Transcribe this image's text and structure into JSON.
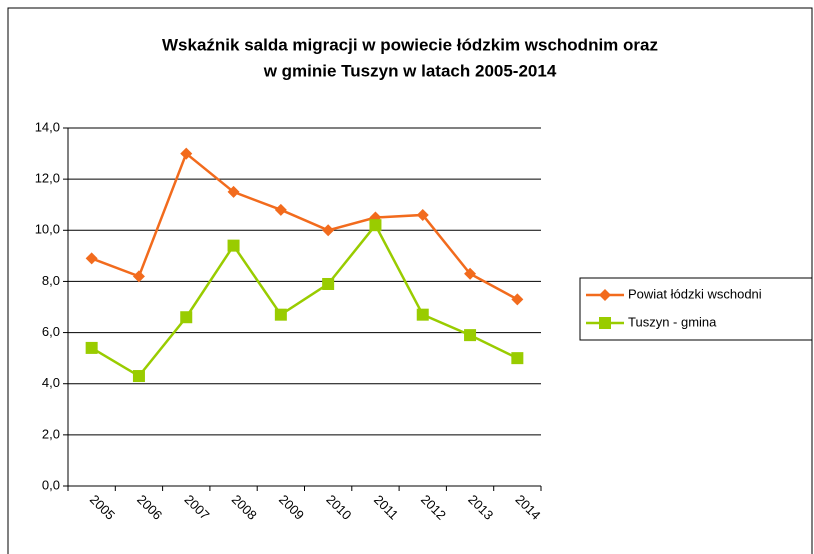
{
  "chart_data": {
    "type": "line",
    "title": [
      "Wskaźnik salda migracji w powiecie łódzkim wschodnim oraz",
      "w gminie Tuszyn w latach 2005-2014"
    ],
    "categories": [
      "2005",
      "2006",
      "2007",
      "2008",
      "2009",
      "2010",
      "2011",
      "2012",
      "2013",
      "2014"
    ],
    "series": [
      {
        "name": "Powiat łódzki wschodni",
        "color": "#f26b1d",
        "marker": "diamond",
        "values": [
          8.9,
          8.2,
          13.0,
          11.5,
          10.8,
          10.0,
          10.5,
          10.6,
          8.3,
          7.3
        ]
      },
      {
        "name": "Tuszyn - gmina",
        "color": "#99cc00",
        "marker": "square",
        "values": [
          5.4,
          4.3,
          6.6,
          9.4,
          6.7,
          7.9,
          10.2,
          6.7,
          5.9,
          5.0
        ]
      }
    ],
    "ylim": [
      0,
      14
    ],
    "yticks": [
      {
        "value": 0,
        "label": "0,0"
      },
      {
        "value": 2,
        "label": "2,0"
      },
      {
        "value": 4,
        "label": "4,0"
      },
      {
        "value": 6,
        "label": "6,0"
      },
      {
        "value": 8,
        "label": "8,0"
      },
      {
        "value": 10,
        "label": "10,0"
      },
      {
        "value": 12,
        "label": "12,0"
      },
      {
        "value": 14,
        "label": "14,0"
      }
    ],
    "grid": true,
    "legend": "right"
  }
}
